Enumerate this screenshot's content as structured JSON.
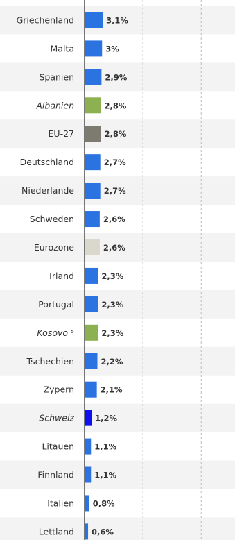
{
  "chart_data": {
    "type": "hbar",
    "categories": [
      "Griechenland",
      "Malta",
      "Spanien",
      "Albanien",
      "EU-27",
      "Deutschland",
      "Niederlande",
      "Schweden",
      "Eurozone",
      "Irland",
      "Portugal",
      "Kosovo ⁵",
      "Tschechien",
      "Zypern",
      "Schweiz",
      "Litauen",
      "Finnland",
      "Italien",
      "Lettland"
    ],
    "category_styles": [
      "normal",
      "normal",
      "normal",
      "italic",
      "normal",
      "normal",
      "normal",
      "normal",
      "normal",
      "normal",
      "normal",
      "italic",
      "normal",
      "normal",
      "italic",
      "normal",
      "normal",
      "normal",
      "normal"
    ],
    "values": [
      3.1,
      3,
      2.9,
      2.8,
      2.8,
      2.7,
      2.7,
      2.6,
      2.6,
      2.3,
      2.3,
      2.3,
      2.2,
      2.1,
      1.2,
      1.1,
      1.1,
      0.8,
      0.6
    ],
    "value_labels": [
      "3,1%",
      "3%",
      "2,9%",
      "2,8%",
      "2,8%",
      "2,7%",
      "2,7%",
      "2,6%",
      "2,6%",
      "2,3%",
      "2,3%",
      "2,3%",
      "2,2%",
      "2,1%",
      "1,2%",
      "1,1%",
      "1,1%",
      "0,8%",
      "0,6%"
    ],
    "colors": [
      "#2b73e0",
      "#2b73e0",
      "#2b73e0",
      "#8db050",
      "#7d7b70",
      "#2b73e0",
      "#2b73e0",
      "#2b73e0",
      "#dad7cc",
      "#2b73e0",
      "#2b73e0",
      "#8db050",
      "#2b73e0",
      "#2b73e0",
      "#1010ee",
      "#2b73e0",
      "#2b73e0",
      "#2b73e0",
      "#2b73e0"
    ],
    "xlim": [
      0,
      25.8
    ],
    "xticks": [
      0,
      10,
      20
    ],
    "grid": true
  }
}
